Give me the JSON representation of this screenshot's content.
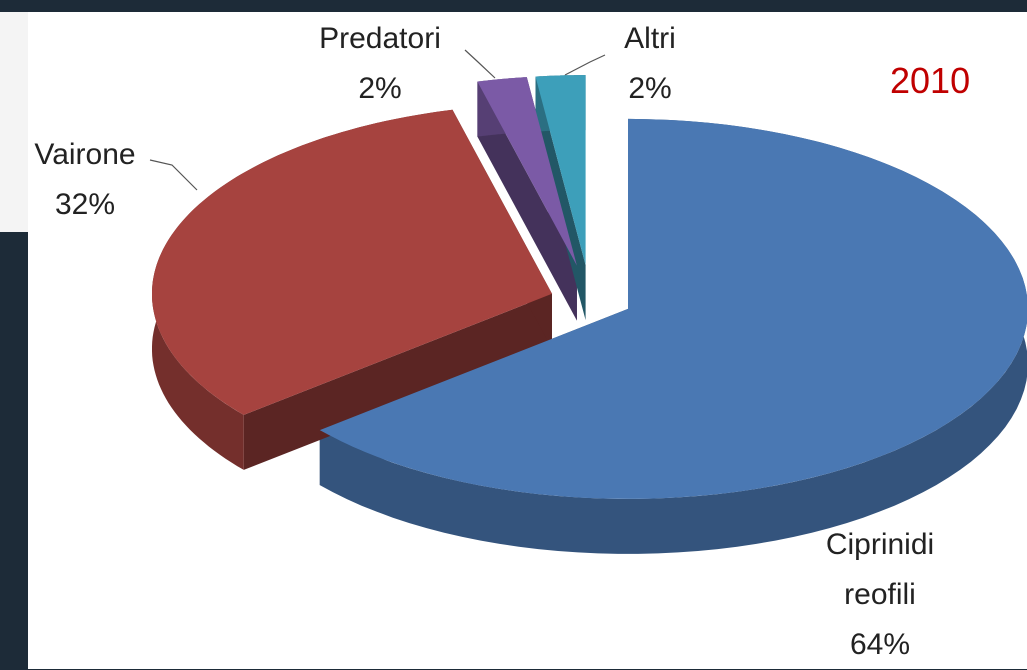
{
  "chart_data": {
    "type": "pie3d",
    "title": "2010",
    "categories": [
      "Ciprinidi reofili",
      "Vairone",
      "Predatori",
      "Altri"
    ],
    "values": [
      64,
      32,
      2,
      2
    ],
    "value_labels": [
      "64%",
      "32%",
      "2%",
      "2%"
    ],
    "colors": [
      "#4a78b3",
      "#a6433f",
      "#7b5aa6",
      "#3d9fba"
    ]
  }
}
